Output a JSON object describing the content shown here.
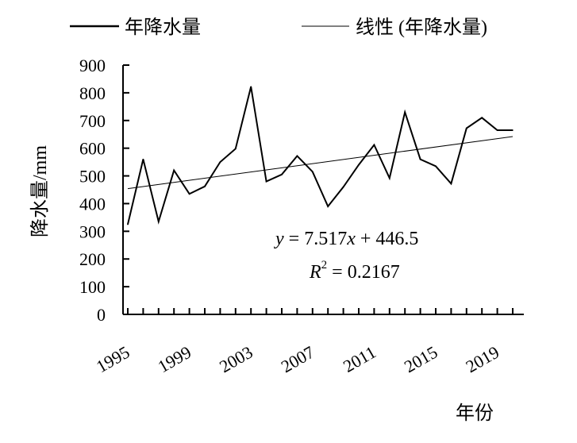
{
  "chart_data": {
    "type": "line",
    "xlabel": "年份",
    "ylabel": "降水量/mm",
    "ylim": [
      0,
      900
    ],
    "yticks": [
      0,
      100,
      200,
      300,
      400,
      500,
      600,
      700,
      800,
      900
    ],
    "xlim": [
      1995,
      2020
    ],
    "xtick_labels": [
      "1995",
      "1999",
      "2003",
      "2007",
      "2011",
      "2015",
      "2019"
    ],
    "legend_position": "top",
    "grid": false,
    "series": [
      {
        "name": "年降水量",
        "x": [
          1995,
          1996,
          1997,
          1998,
          1999,
          2000,
          2001,
          2002,
          2003,
          2004,
          2005,
          2006,
          2007,
          2008,
          2009,
          2010,
          2011,
          2012,
          2013,
          2014,
          2015,
          2016,
          2017,
          2018,
          2019,
          2020
        ],
        "values": [
          325,
          560,
          335,
          520,
          435,
          462,
          550,
          598,
          822,
          480,
          505,
          572,
          515,
          390,
          460,
          540,
          612,
          492,
          730,
          560,
          535,
          472,
          672,
          710,
          665,
          665
        ]
      },
      {
        "name": "线性 (年降水量)",
        "trendline": true,
        "slope": 7.517,
        "intercept": 446.5
      }
    ],
    "annotations": {
      "equation_y": "y",
      "equation_rest": " = 7.517",
      "equation_x": "x",
      "equation_tail": " + 446.5",
      "r2_R": "R",
      "r2_sup": "2",
      "r2_rest": " = 0.2167"
    }
  }
}
